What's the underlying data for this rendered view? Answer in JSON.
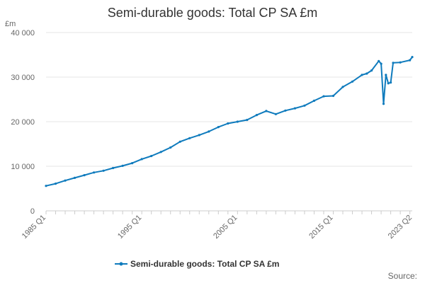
{
  "chart_data": {
    "type": "line",
    "title": "Semi-durable goods: Total CP SA £m",
    "ylabel": "£m",
    "xlabel": "",
    "ylim": [
      0,
      40000
    ],
    "yticks": [
      0,
      10000,
      20000,
      30000,
      40000
    ],
    "ytick_labels": [
      "0",
      "10 000",
      "20 000",
      "30 000",
      "40 000"
    ],
    "xticks": [
      "1985 Q1",
      "1995 Q1",
      "2005 Q1",
      "2015 Q1",
      "2023 Q2"
    ],
    "grid": true,
    "legend_position": "bottom",
    "source_label": "Source:",
    "colors": {
      "series": "#0f7bbd",
      "grid": "#e6e6e6",
      "axis": "#cccccc"
    },
    "series": [
      {
        "name": "Semi-durable goods: Total CP SA £m",
        "points": [
          [
            "1985 Q1",
            5600
          ],
          [
            "1986 Q1",
            6100
          ],
          [
            "1987 Q1",
            6800
          ],
          [
            "1988 Q1",
            7400
          ],
          [
            "1989 Q1",
            8000
          ],
          [
            "1990 Q1",
            8600
          ],
          [
            "1991 Q1",
            9000
          ],
          [
            "1992 Q1",
            9600
          ],
          [
            "1993 Q1",
            10100
          ],
          [
            "1994 Q1",
            10700
          ],
          [
            "1995 Q1",
            11600
          ],
          [
            "1996 Q1",
            12300
          ],
          [
            "1997 Q1",
            13200
          ],
          [
            "1998 Q1",
            14200
          ],
          [
            "1999 Q1",
            15500
          ],
          [
            "2000 Q1",
            16300
          ],
          [
            "2001 Q1",
            17000
          ],
          [
            "2002 Q1",
            17800
          ],
          [
            "2003 Q1",
            18800
          ],
          [
            "2004 Q1",
            19600
          ],
          [
            "2005 Q1",
            20000
          ],
          [
            "2006 Q1",
            20400
          ],
          [
            "2007 Q1",
            21500
          ],
          [
            "2008 Q1",
            22400
          ],
          [
            "2009 Q1",
            21700
          ],
          [
            "2010 Q1",
            22500
          ],
          [
            "2011 Q1",
            23000
          ],
          [
            "2012 Q1",
            23600
          ],
          [
            "2013 Q1",
            24700
          ],
          [
            "2014 Q1",
            25700
          ],
          [
            "2015 Q1",
            25800
          ],
          [
            "2016 Q1",
            27800
          ],
          [
            "2017 Q1",
            29000
          ],
          [
            "2018 Q1",
            30500
          ],
          [
            "2018 Q3",
            30800
          ],
          [
            "2019 Q1",
            31500
          ],
          [
            "2019 Q4",
            33600
          ],
          [
            "2020 Q1",
            33000
          ],
          [
            "2020 Q2",
            24000
          ],
          [
            "2020 Q3",
            30500
          ],
          [
            "2020 Q4",
            28600
          ],
          [
            "2021 Q1",
            28800
          ],
          [
            "2021 Q2",
            33200
          ],
          [
            "2022 Q1",
            33300
          ],
          [
            "2023 Q1",
            33800
          ],
          [
            "2023 Q2",
            34500
          ]
        ]
      }
    ]
  }
}
